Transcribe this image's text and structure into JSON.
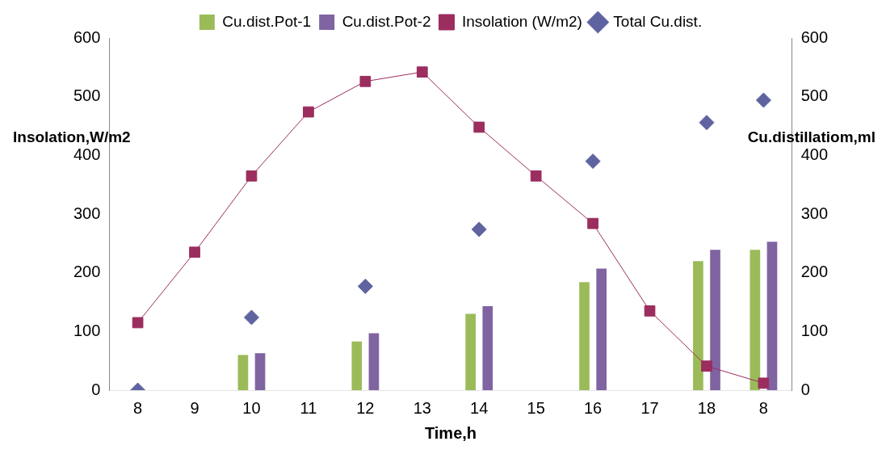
{
  "chart_data": {
    "type": "bar",
    "xlabel": "Time,h",
    "ylabel": "Insolation,W/m2",
    "y2label": "Cu.distillatiom,ml",
    "categories": [
      "8",
      "9",
      "10",
      "11",
      "12",
      "13",
      "14",
      "15",
      "16",
      "17",
      "18",
      "8"
    ],
    "series": [
      {
        "name": "Cu.dist.Pot-1",
        "color": "#9bbb59",
        "values": [
          null,
          null,
          60,
          null,
          83,
          null,
          130,
          null,
          184,
          null,
          220,
          239
        ]
      },
      {
        "name": "Cu.dist.Pot-2",
        "color": "#8064a2",
        "values": [
          null,
          null,
          63,
          null,
          97,
          null,
          143,
          null,
          207,
          null,
          239,
          253
        ]
      },
      {
        "name": "Insolation (W/m2)",
        "type": "line",
        "color": "#9b2d5f",
        "marker": "square",
        "line_style": "solid",
        "values": [
          115,
          235,
          365,
          474,
          526,
          542,
          448,
          365,
          284,
          135,
          41,
          12
        ]
      },
      {
        "name": "Total Cu.dist.",
        "type": "scatter",
        "color": "#5f64a0",
        "marker": "diamond",
        "values": [
          0,
          null,
          124,
          null,
          177,
          null,
          274,
          null,
          390,
          null,
          456,
          494
        ]
      }
    ],
    "ylim": [
      0,
      600
    ],
    "yticks": [
      0,
      100,
      200,
      300,
      400,
      500,
      600
    ],
    "y2lim": [
      0,
      600
    ],
    "y2ticks": [
      0,
      100,
      200,
      300,
      400,
      500,
      600
    ],
    "grid": false,
    "legend": "top"
  }
}
